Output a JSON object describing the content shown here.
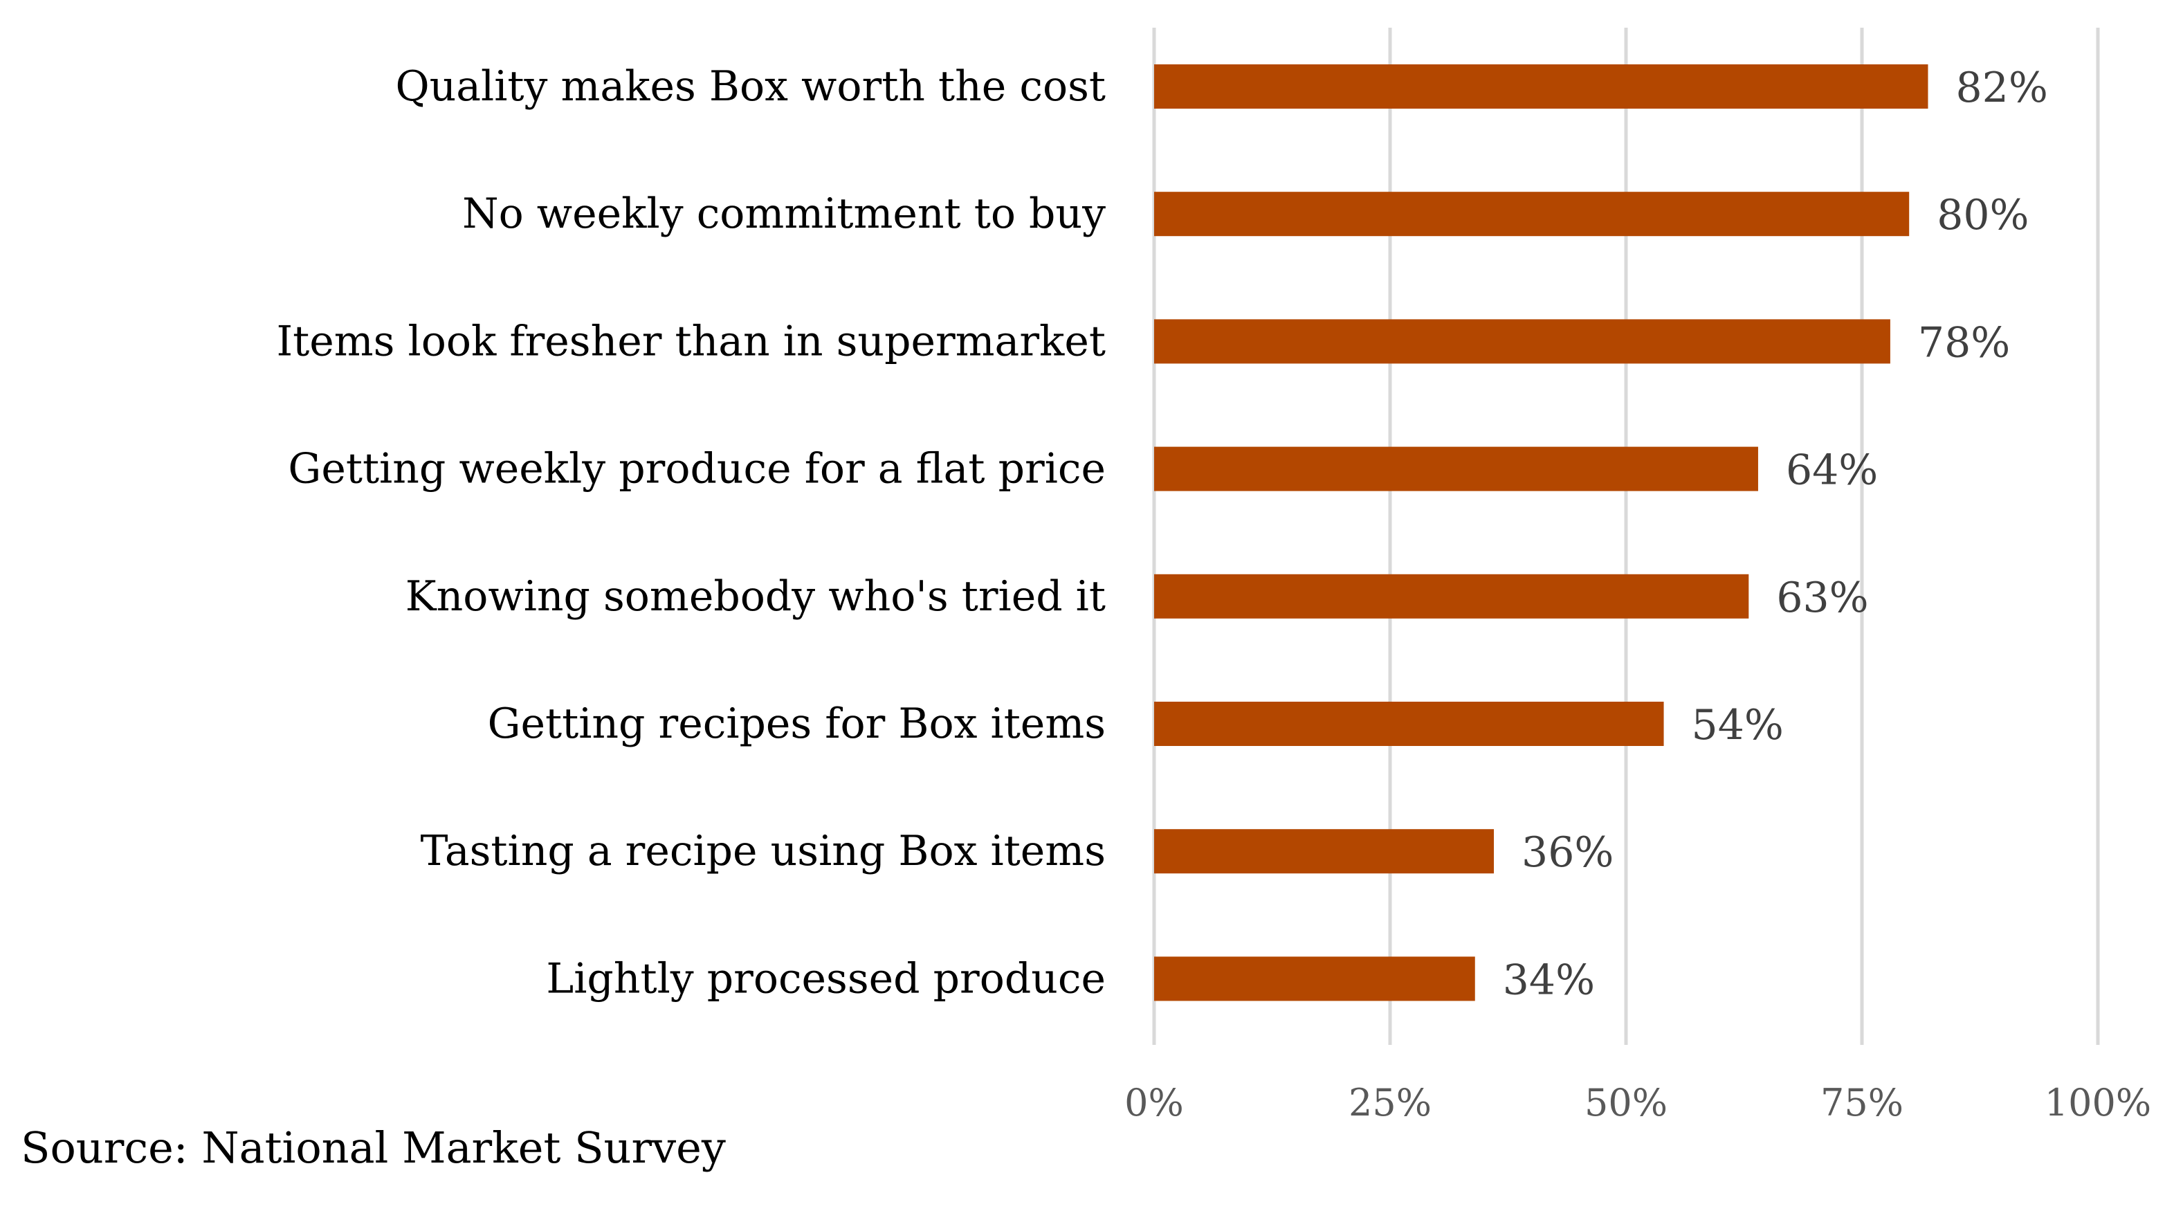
{
  "chart_data": {
    "type": "bar",
    "orientation": "horizontal",
    "categories": [
      "Quality makes Box worth the cost",
      "No weekly commitment to buy",
      "Items look fresher than in supermarket",
      "Getting weekly produce for a flat price",
      "Knowing somebody who's tried it",
      "Getting recipes for Box items",
      "Tasting a recipe using Box items",
      "Lightly processed produce"
    ],
    "values": [
      82,
      80,
      78,
      64,
      63,
      54,
      36,
      34
    ],
    "value_labels": [
      "82%",
      "80%",
      "78%",
      "64%",
      "63%",
      "54%",
      "36%",
      "34%"
    ],
    "xlim": [
      0,
      100
    ],
    "x_ticks": [
      0,
      25,
      50,
      75,
      100
    ],
    "x_tick_labels": [
      "0%",
      "25%",
      "50%",
      "75%",
      "100%"
    ],
    "title": "",
    "xlabel": "",
    "ylabel": "",
    "grid": "vertical",
    "bar_color": "#B34700"
  },
  "source": "Source: National Market Survey"
}
